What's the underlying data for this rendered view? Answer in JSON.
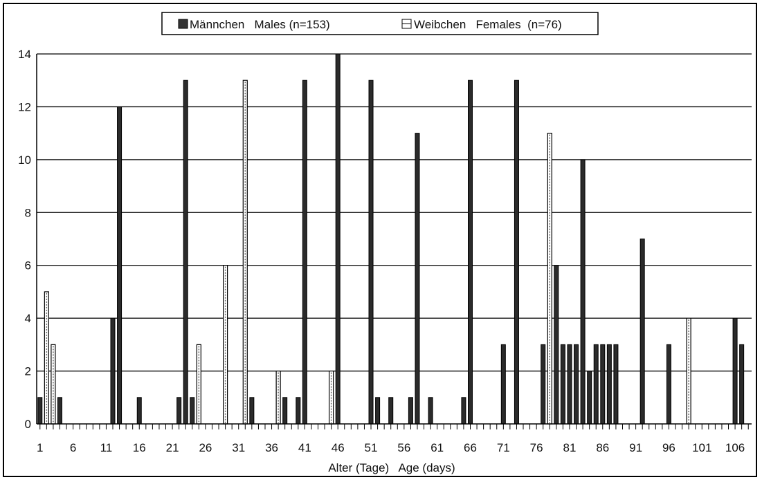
{
  "chart_data": {
    "type": "bar",
    "title": "",
    "xlabel": "Alter (Tage)   Age (days)",
    "ylabel": "",
    "ylim": [
      0,
      14
    ],
    "y_ticks": [
      0,
      2,
      4,
      6,
      8,
      10,
      12,
      14
    ],
    "x_range": [
      1,
      108
    ],
    "x_tick_labels": [
      1,
      6,
      11,
      16,
      21,
      26,
      31,
      36,
      41,
      46,
      51,
      56,
      61,
      66,
      71,
      76,
      81,
      86,
      91,
      96,
      101,
      106
    ],
    "grid": "horizontal",
    "legend_position": "top-center",
    "legend": [
      {
        "label": "Männchen   Males (n=153)",
        "symbol": "solid"
      },
      {
        "label": "Weibchen   Females  (n=76)",
        "symbol": "dotted"
      }
    ],
    "series": [
      {
        "name": "Männchen   Males (n=153)",
        "style": "solid",
        "x": [
          1,
          4,
          12,
          13,
          16,
          22,
          23,
          24,
          33,
          38,
          40,
          41,
          46,
          51,
          52,
          54,
          57,
          58,
          60,
          65,
          66,
          71,
          73,
          77,
          79,
          80,
          81,
          82,
          83,
          84,
          85,
          86,
          87,
          88,
          92,
          96,
          106,
          107
        ],
        "values": [
          1,
          1,
          4,
          12,
          1,
          1,
          13,
          1,
          1,
          1,
          1,
          13,
          14,
          13,
          1,
          1,
          1,
          11,
          1,
          1,
          13,
          3,
          13,
          3,
          6,
          3,
          3,
          3,
          10,
          2,
          3,
          3,
          3,
          3,
          7,
          3,
          4,
          3
        ]
      },
      {
        "name": "Weibchen   Females  (n=76)",
        "style": "dotted",
        "x": [
          2,
          3,
          25,
          29,
          32,
          37,
          45,
          78,
          99
        ],
        "values": [
          5,
          3,
          3,
          6,
          13,
          2,
          2,
          11,
          4
        ]
      }
    ]
  }
}
